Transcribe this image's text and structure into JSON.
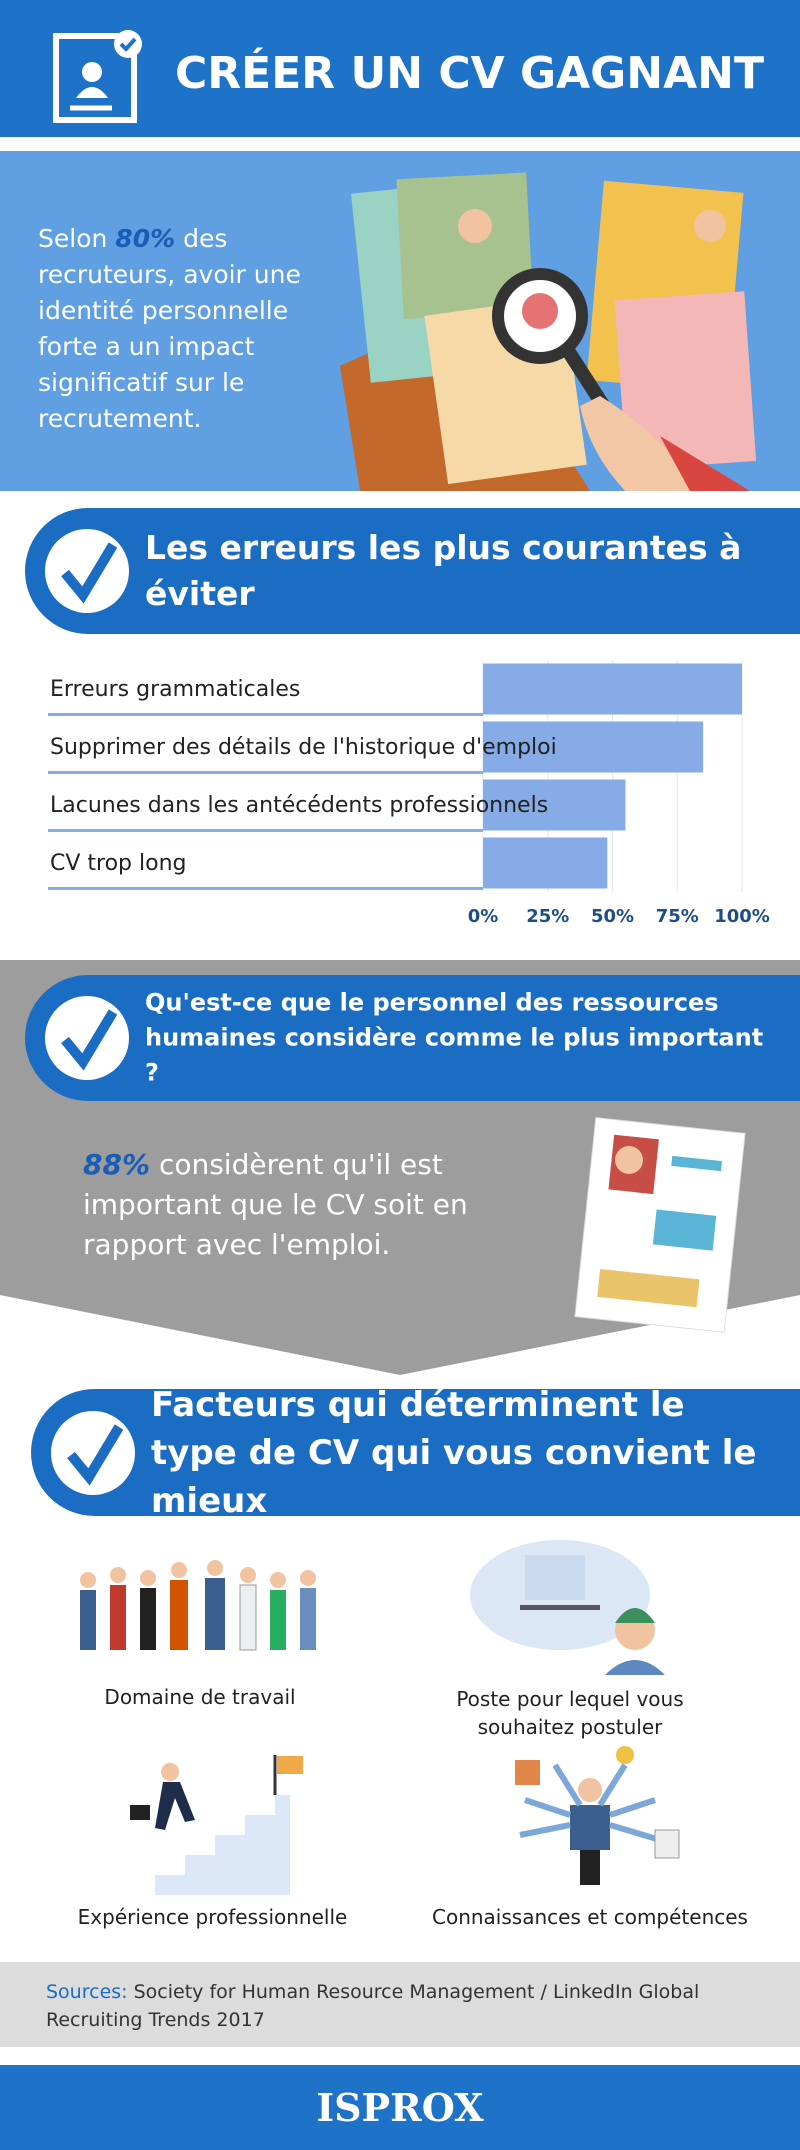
{
  "header": {
    "title": "CRÉER UN CV GAGNANT"
  },
  "intro": {
    "text_before": "Selon",
    "highlight": "80%",
    "text_after": "des recruteurs, avoir une identité personnelle forte a un impact significatif sur le recrutement."
  },
  "errors": {
    "heading": "Les erreurs les plus courantes à éviter"
  },
  "chart_data": {
    "type": "bar",
    "orientation": "horizontal",
    "categories": [
      "Erreurs grammaticales",
      "Supprimer des détails de l'historique d'emploi",
      "Lacunes dans les antécédents professionnels",
      "CV trop long"
    ],
    "values": [
      100,
      85,
      55,
      48
    ],
    "color": "#86abe6",
    "xlim": [
      0,
      100
    ],
    "xticks": [
      {
        "value": 0,
        "label": "0%"
      },
      {
        "value": 25,
        "label": "25%"
      },
      {
        "value": 50,
        "label": "50%"
      },
      {
        "value": 75,
        "label": "75%"
      },
      {
        "value": 100,
        "label": "100%"
      }
    ],
    "grid": true
  },
  "hr": {
    "heading": "Qu'est-ce que le personnel des ressources humaines considère comme le plus important ?",
    "highlight": "88%",
    "text": "considèrent qu'il est important que le CV soit en rapport avec l'emploi."
  },
  "factors": {
    "heading": "Facteurs qui déterminent le type de CV qui vous convient le mieux",
    "items": [
      "Domaine de travail",
      "Poste pour lequel vous souhaitez postuler",
      "Expérience professionnelle",
      "Connaissances et compétences"
    ]
  },
  "sources": {
    "label": "Sources:",
    "text": "Society for Human Resource Management / LinkedIn Global Recruiting Trends 2017"
  },
  "footer": {
    "logo": "ISPROX"
  }
}
